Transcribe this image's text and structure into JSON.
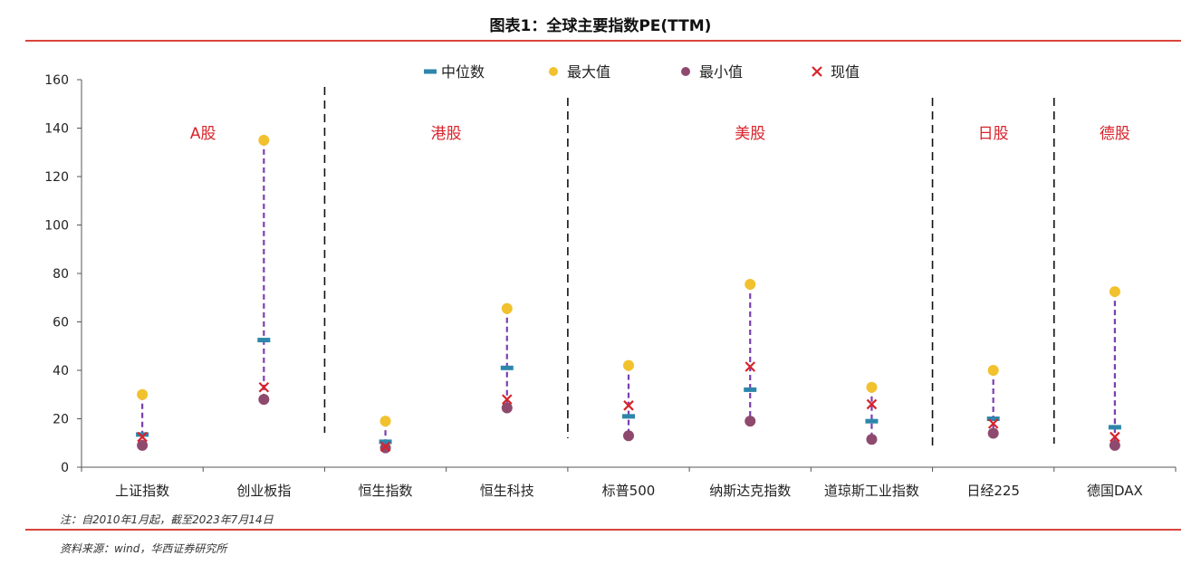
{
  "header": {
    "title": "图表1：全球主要指数PE(TTM)"
  },
  "footer": {
    "note": "注：自2010年1月起，截至2023年7月14日",
    "source": "资料来源：wind，华西证券研究所"
  },
  "colors": {
    "rule": "#d9453b",
    "median": "#2e86ab",
    "max": "#f2c12e",
    "min": "#8e4a6e",
    "current": "#d8232a",
    "range_line": "#7b3fb0",
    "region_label": "#d8232a",
    "axis": "#555555"
  },
  "chart_data": {
    "type": "scatter",
    "ylim": [
      0,
      160
    ],
    "yticks": [
      0,
      20,
      40,
      60,
      80,
      100,
      120,
      140,
      160
    ],
    "categories": [
      "上证指数",
      "创业板指",
      "恒生指数",
      "恒生科技",
      "标普500",
      "纳斯达克指数",
      "道琼斯工业指数",
      "日经225",
      "德国DAX"
    ],
    "series": [
      {
        "name": "中位数",
        "marker": "dash",
        "values": [
          13.5,
          52.5,
          10.5,
          41,
          21,
          32,
          19,
          20,
          16.5
        ]
      },
      {
        "name": "最大值",
        "marker": "dot",
        "values": [
          30,
          135,
          19,
          65.5,
          42,
          75.5,
          33,
          40,
          72.5
        ]
      },
      {
        "name": "最小值",
        "marker": "dot",
        "values": [
          9,
          28,
          8,
          24.5,
          13,
          19,
          11.5,
          14,
          9
        ]
      },
      {
        "name": "现值",
        "marker": "cross",
        "values": [
          12.5,
          33,
          8.5,
          28,
          25.5,
          41.5,
          26,
          18,
          12.5
        ]
      }
    ],
    "regions": [
      {
        "label": "A股",
        "from": 0,
        "to": 1
      },
      {
        "label": "港股",
        "from": 2,
        "to": 3
      },
      {
        "label": "美股",
        "from": 4,
        "to": 6
      },
      {
        "label": "日股",
        "from": 7,
        "to": 7
      },
      {
        "label": "德股",
        "from": 8,
        "to": 8
      }
    ],
    "legend_position": "top-center",
    "grid": false
  }
}
